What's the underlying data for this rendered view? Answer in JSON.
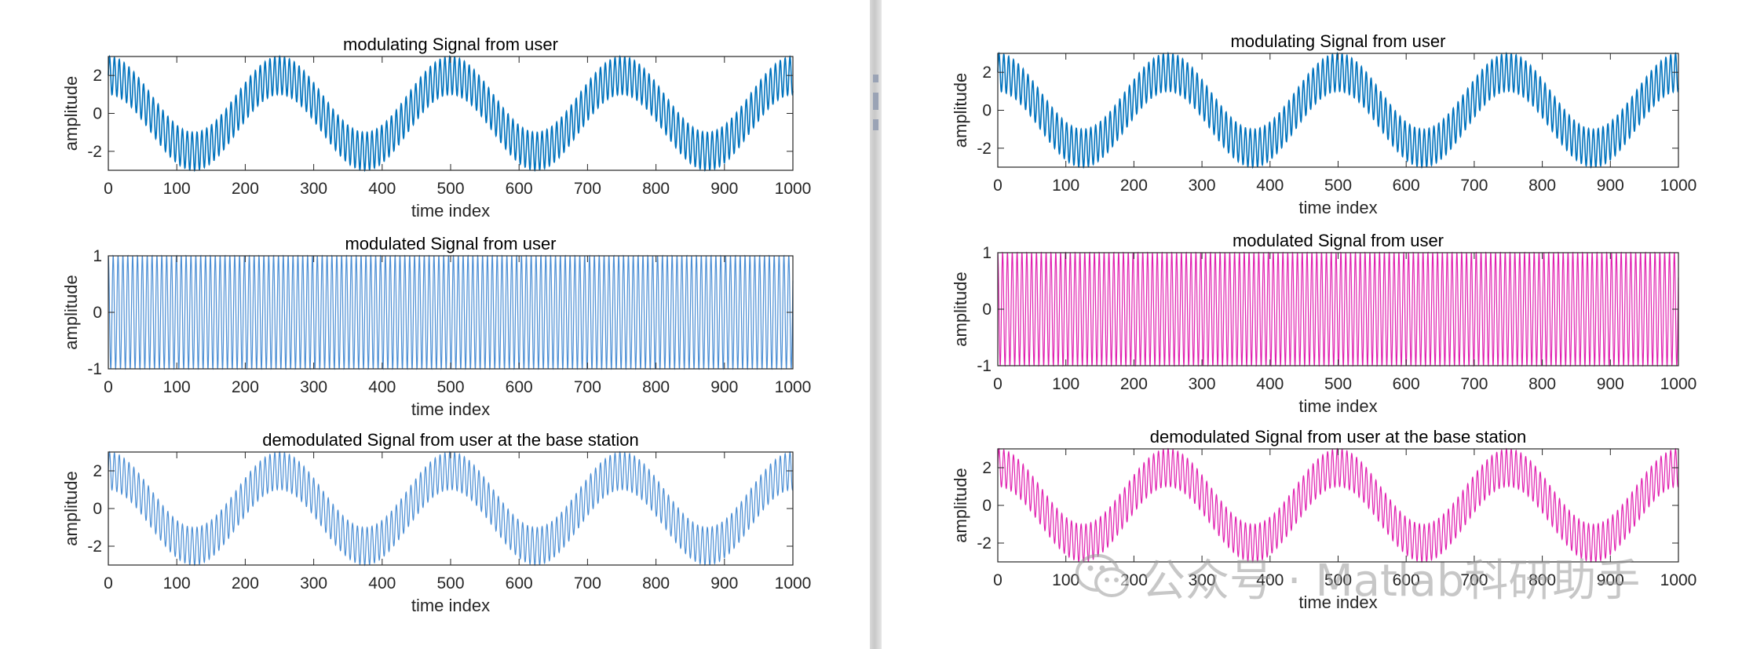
{
  "watermark": {
    "text": "公众号 · Matlab科研助手",
    "icon": "wechat-icon"
  },
  "colors": {
    "blue": "#0072BD",
    "light_blue": "#4B8ED4",
    "magenta": "#E020B0",
    "axis": "#262626"
  },
  "windows": [
    {
      "id": "left",
      "chart_data": [
        {
          "type": "line",
          "title": "modulating Signal from user",
          "xlabel": "time index",
          "ylabel": "amplitude",
          "xlim": [
            0,
            1000
          ],
          "ylim": [
            -3,
            3
          ],
          "xticks": [
            0,
            100,
            200,
            300,
            400,
            500,
            600,
            700,
            800,
            900,
            1000
          ],
          "yticks": [
            -2,
            0,
            2
          ],
          "series": [
            {
              "color": "#0072BD",
              "function": "2*sin(2*pi*t/250 - pi/2 + pi) + sin(2*pi*t/7.1)",
              "x": [
                0,
                1000
              ]
            }
          ]
        },
        {
          "type": "line",
          "title": "modulated Signal from user",
          "xlabel": "time index",
          "ylabel": "amplitude",
          "xlim": [
            0,
            1000
          ],
          "ylim": [
            -1,
            1
          ],
          "xticks": [
            0,
            100,
            200,
            300,
            400,
            500,
            600,
            700,
            800,
            900,
            1000
          ],
          "yticks": [
            -1,
            0,
            1
          ],
          "series": [
            {
              "color": "#4B8ED4",
              "function": "cos(2*pi*t/7.1)",
              "x": [
                0,
                1000
              ]
            }
          ]
        },
        {
          "type": "line",
          "title": "demodulated Signal from user at the base station",
          "xlabel": "time index",
          "ylabel": "amplitude",
          "xlim": [
            0,
            1000
          ],
          "ylim": [
            -3,
            3
          ],
          "xticks": [
            0,
            100,
            200,
            300,
            400,
            500,
            600,
            700,
            800,
            900,
            1000
          ],
          "yticks": [
            -2,
            0,
            2
          ],
          "series": [
            {
              "color": "#4B8ED4",
              "function": "2*sin(2*pi*t/250 - pi/2 + pi) + sin(2*pi*t/7.1)",
              "x": [
                0,
                1000
              ]
            }
          ]
        }
      ]
    },
    {
      "id": "right",
      "chart_data": [
        {
          "type": "line",
          "title": "modulating Signal from user",
          "xlabel": "time index",
          "ylabel": "amplitude",
          "xlim": [
            0,
            1000
          ],
          "ylim": [
            -3,
            3
          ],
          "xticks": [
            0,
            100,
            200,
            300,
            400,
            500,
            600,
            700,
            800,
            900,
            1000
          ],
          "yticks": [
            -2,
            0,
            2
          ],
          "series": [
            {
              "color": "#0072BD",
              "function": "2*sin(2*pi*t/250 - pi/2 + pi) + sin(2*pi*t/7.1)",
              "x": [
                0,
                1000
              ]
            }
          ]
        },
        {
          "type": "line",
          "title": "modulated Signal from user",
          "xlabel": "time index",
          "ylabel": "amplitude",
          "xlim": [
            0,
            1000
          ],
          "ylim": [
            -1,
            1
          ],
          "xticks": [
            0,
            100,
            200,
            300,
            400,
            500,
            600,
            700,
            800,
            900,
            1000
          ],
          "yticks": [
            -1,
            0,
            1
          ],
          "series": [
            {
              "color": "#E020B0",
              "function": "cos(2*pi*t/7.1)",
              "x": [
                0,
                1000
              ]
            }
          ]
        },
        {
          "type": "line",
          "title": "demodulated Signal from user at the base station",
          "xlabel": "time index",
          "ylabel": "amplitude",
          "xlim": [
            0,
            1000
          ],
          "ylim": [
            -3,
            3
          ],
          "xticks": [
            0,
            100,
            200,
            300,
            400,
            500,
            600,
            700,
            800,
            900,
            1000
          ],
          "yticks": [
            -2,
            0,
            2
          ],
          "series": [
            {
              "color": "#E020B0",
              "function": "2*sin(2*pi*t/250 - pi/2 + pi) + sin(2*pi*t/7.1)",
              "x": [
                0,
                1000
              ]
            }
          ]
        }
      ]
    }
  ]
}
